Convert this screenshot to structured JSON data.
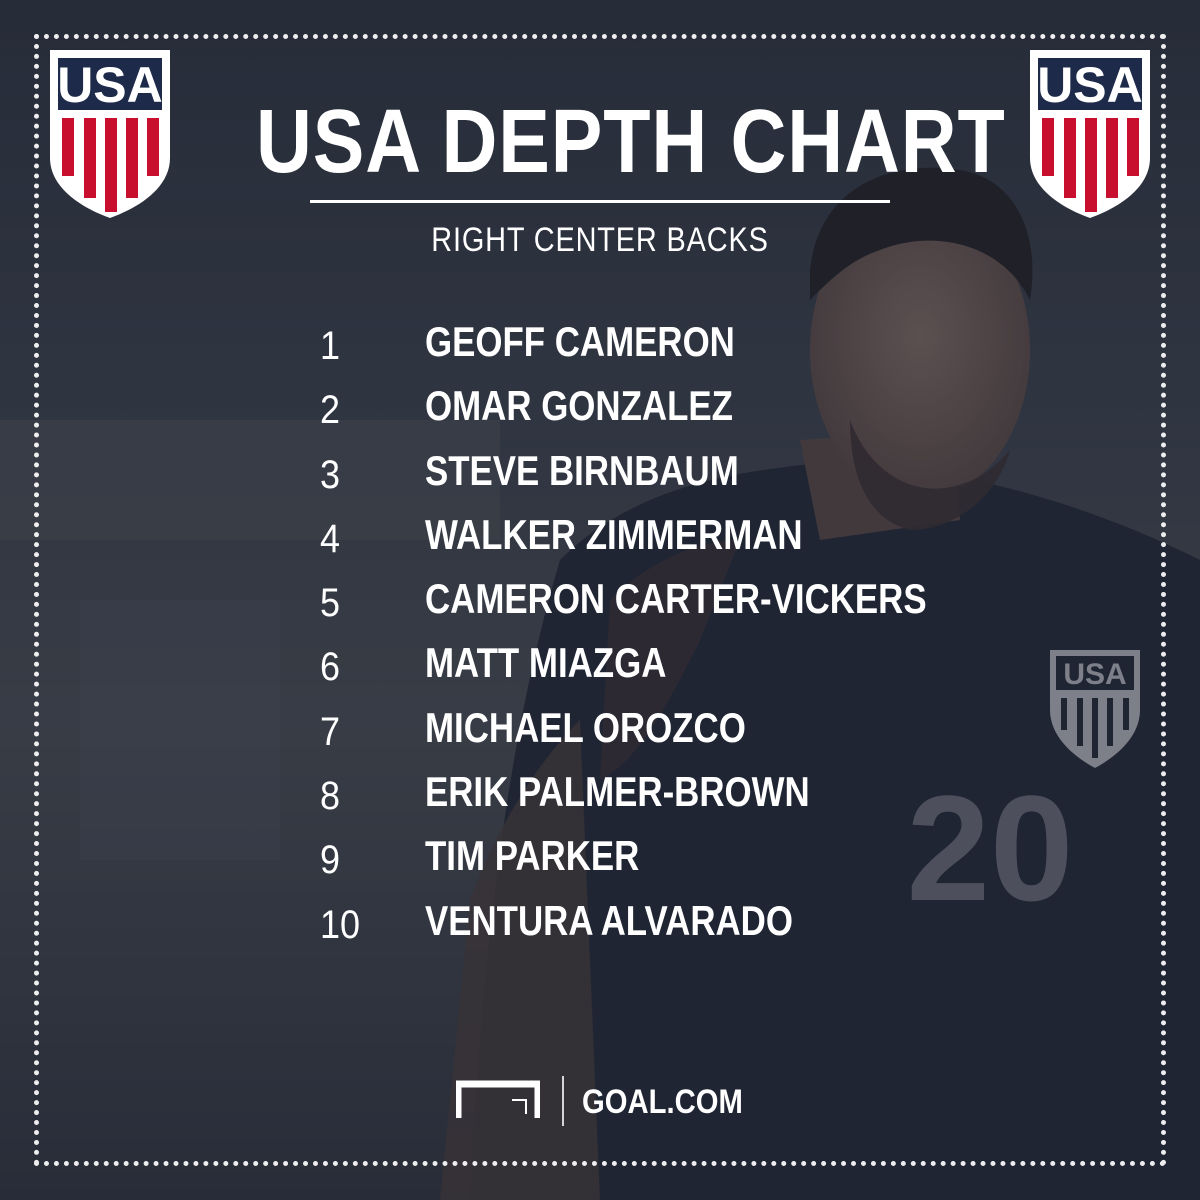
{
  "header": {
    "title": "USA DEPTH CHART",
    "subtitle": "RIGHT CENTER BACKS",
    "crest_text": "USA"
  },
  "roster": [
    {
      "rank": "1",
      "name": "GEOFF CAMERON"
    },
    {
      "rank": "2",
      "name": "OMAR GONZALEZ"
    },
    {
      "rank": "3",
      "name": "STEVE BIRNBAUM"
    },
    {
      "rank": "4",
      "name": "WALKER ZIMMERMAN"
    },
    {
      "rank": "5",
      "name": "CAMERON CARTER-VICKERS"
    },
    {
      "rank": "6",
      "name": "MATT MIAZGA"
    },
    {
      "rank": "7",
      "name": "MICHAEL OROZCO"
    },
    {
      "rank": "8",
      "name": "ERIK PALMER-BROWN"
    },
    {
      "rank": "9",
      "name": "TIM PARKER"
    },
    {
      "rank": "10",
      "name": "VENTURA ALVARADO"
    }
  ],
  "background": {
    "jersey_number": "20",
    "jersey_crest_text": "USA"
  },
  "footer": {
    "brand": "GOAL.COM"
  },
  "colors": {
    "navy": "#1d2a4a",
    "red": "#c8102e",
    "white": "#ffffff",
    "overlay": "#2e3540"
  }
}
